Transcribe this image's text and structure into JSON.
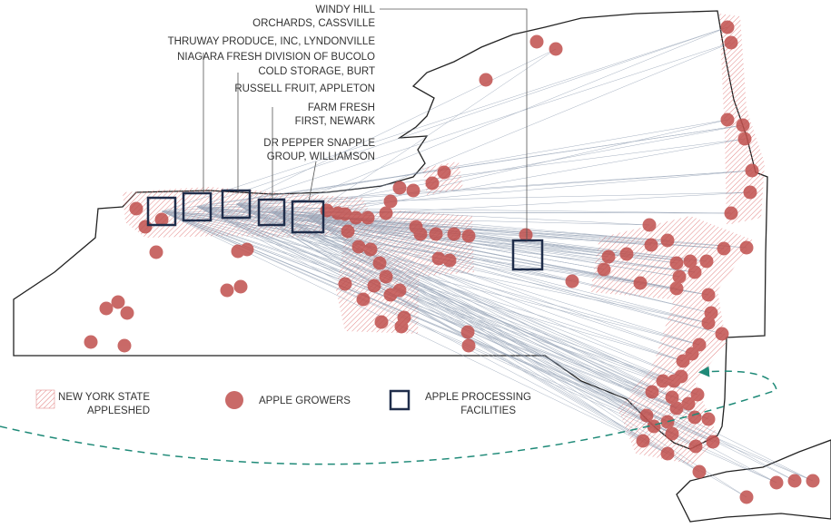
{
  "facilities": [
    {
      "lines": [
        "WINDY HILL",
        "ORCHARDS, CASSVILLE"
      ]
    },
    {
      "lines": [
        "THRUWAY PRODUCE, INC, LYNDONVILLE"
      ]
    },
    {
      "lines": [
        "NIAGARA FRESH DIVISION OF BUCOLO",
        "COLD STORAGE, BURT"
      ]
    },
    {
      "lines": [
        "RUSSELL FRUIT, APPLETON"
      ]
    },
    {
      "lines": [
        "FARM FRESH",
        "FIRST, NEWARK"
      ]
    },
    {
      "lines": [
        "DR PEPPER SNAPPLE",
        "GROUP, WILLIAMSON"
      ]
    }
  ],
  "legend": [
    {
      "lines": [
        "NEW YORK STATE",
        "APPLESHED"
      ]
    },
    {
      "lines": [
        "APPLE GROWERS"
      ]
    },
    {
      "lines": [
        "APPLE PROCESSING",
        "FACILITIES"
      ]
    }
  ]
}
